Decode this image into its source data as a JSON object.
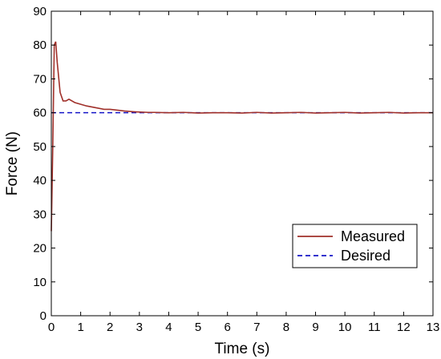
{
  "chart_data": {
    "type": "line",
    "title": "",
    "xlabel": "Time (s)",
    "ylabel": "Force (N)",
    "xlim": [
      0,
      13
    ],
    "ylim": [
      0,
      90
    ],
    "xticks": [
      "0",
      "1",
      "2",
      "3",
      "4",
      "5",
      "6",
      "7",
      "8",
      "9",
      "10",
      "11",
      "12",
      "13"
    ],
    "yticks": [
      "0",
      "10",
      "20",
      "30",
      "40",
      "50",
      "60",
      "70",
      "80",
      "90"
    ],
    "grid": false,
    "legend_position": "bottom-right",
    "series": [
      {
        "name": "Measured",
        "color": "#a0302a",
        "style": "solid",
        "x": [
          0,
          0.05,
          0.1,
          0.15,
          0.2,
          0.3,
          0.4,
          0.5,
          0.6,
          0.8,
          1.0,
          1.2,
          1.5,
          1.8,
          2.0,
          2.3,
          2.5,
          2.8,
          3.0,
          3.3,
          3.5,
          4.0,
          4.5,
          5.0,
          5.5,
          6.0,
          6.5,
          7.0,
          7.5,
          8.0,
          8.5,
          9.0,
          9.5,
          10.0,
          10.5,
          11.0,
          11.5,
          12.0,
          12.5,
          13.0
        ],
        "values": [
          25,
          50,
          80,
          81,
          75,
          66,
          63.5,
          63.5,
          64,
          63,
          62.5,
          62,
          61.5,
          61,
          61,
          60.7,
          60.5,
          60.3,
          60.2,
          60.1,
          60.1,
          60,
          60.1,
          59.9,
          60,
          60,
          59.9,
          60.1,
          59.9,
          60,
          60.1,
          59.9,
          60,
          60.1,
          59.9,
          60,
          60.1,
          59.9,
          60,
          60
        ]
      },
      {
        "name": "Desired",
        "color": "#1515c8",
        "style": "dashed",
        "x": [
          0,
          13
        ],
        "values": [
          60,
          60
        ]
      }
    ]
  }
}
